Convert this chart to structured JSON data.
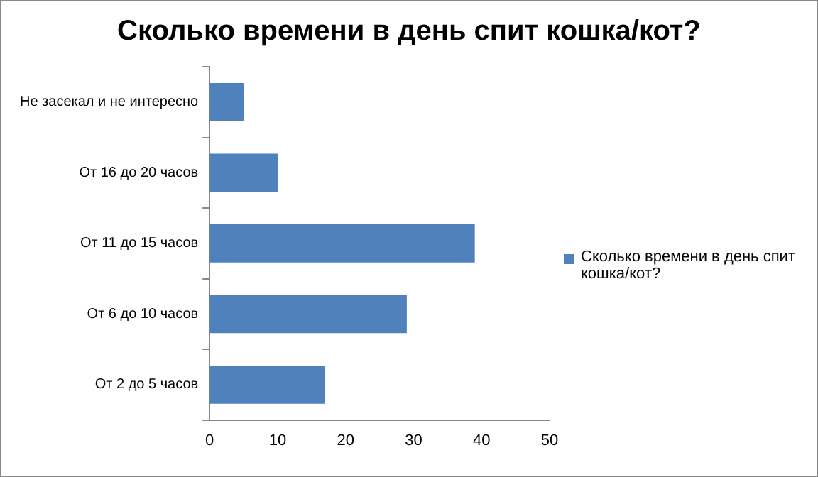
{
  "chart_data": {
    "type": "bar",
    "orientation": "horizontal",
    "title": "Сколько времени в день спит кошка/кот?",
    "categories": [
      "Не засекал и не интересно",
      "От 16 до 20 часов",
      "От 11 до 15 часов",
      "От 6 до 10 часов",
      "От 2 до 5 часов"
    ],
    "series": [
      {
        "name": "Сколько времени в день спит кошка/кот?",
        "color": "#4f81bd",
        "values": [
          5,
          10,
          39,
          29,
          17
        ]
      }
    ],
    "xlim": [
      0,
      50
    ],
    "xticks": [
      0,
      10,
      20,
      30,
      40,
      50
    ],
    "grid": false,
    "legend": "right"
  }
}
